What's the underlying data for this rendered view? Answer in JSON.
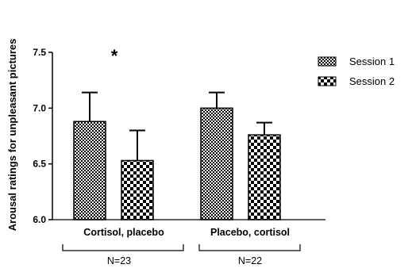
{
  "chart_data": {
    "type": "bar",
    "categories": [
      "Cortisol, placebo",
      "Placebo, cortisol"
    ],
    "series": [
      {
        "name": "Session 1",
        "values": [
          6.88,
          7.0
        ],
        "errors": [
          0.26,
          0.14
        ],
        "pattern": "fine-check"
      },
      {
        "name": "Session 2",
        "values": [
          6.53,
          6.76
        ],
        "errors": [
          0.27,
          0.11
        ],
        "pattern": "coarse-check"
      }
    ],
    "ylabel": "Arousal ratings for unpleasant pictures",
    "ylim": [
      6.0,
      7.5
    ],
    "yticks": [
      "6.0",
      "6.5",
      "7.0",
      "7.5"
    ],
    "yticks_values": [
      6.0,
      6.5,
      7.0,
      7.5
    ],
    "significance": "*",
    "group_labels": [
      "N=23",
      "N=22"
    ],
    "legend_position": "top-right",
    "grid": false
  }
}
